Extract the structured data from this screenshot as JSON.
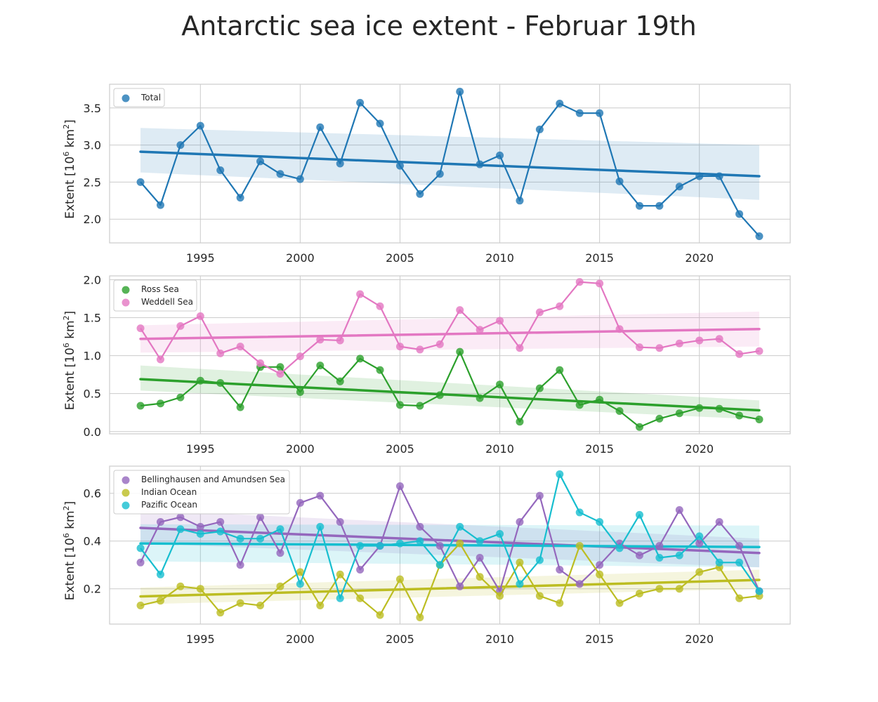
{
  "title": "Antarctic sea ice extent - Februar 19th",
  "colors": {
    "Total": "#1f77b4",
    "Ross Sea": "#2ca02c",
    "Weddell Sea": "#e377c2",
    "Bellinghausen and Amundsen Sea": "#9467bd",
    "Indian Ocean": "#bcbd22",
    "Pazific Ocean": "#17becf",
    "grid": "#cccccc"
  },
  "chart_data": [
    {
      "type": "line",
      "panel": "top",
      "ylabel": "Extent [10^6 km^2]",
      "xlabel": "",
      "xlim": [
        1990.45,
        2024.55
      ],
      "ylim": [
        1.68,
        3.82
      ],
      "xticks": [
        1995,
        2000,
        2005,
        2010,
        2015,
        2020
      ],
      "yticks": [
        "2.0",
        "2.5",
        "3.0",
        "3.5"
      ],
      "ytick_values": [
        2.0,
        2.5,
        3.0,
        3.5
      ],
      "legend": [
        "Total"
      ],
      "legend_position": "upper-left",
      "grid": true,
      "x": [
        1992,
        1993,
        1994,
        1995,
        1996,
        1997,
        1998,
        1999,
        2000,
        2001,
        2002,
        2003,
        2004,
        2005,
        2006,
        2007,
        2008,
        2009,
        2010,
        2011,
        2012,
        2013,
        2014,
        2015,
        2016,
        2017,
        2018,
        2019,
        2020,
        2021,
        2022,
        2023
      ],
      "series": [
        {
          "name": "Total",
          "values": [
            2.5,
            2.19,
            3.0,
            3.26,
            2.66,
            2.29,
            2.78,
            2.61,
            2.54,
            3.24,
            2.75,
            3.57,
            3.29,
            2.72,
            2.34,
            2.61,
            3.72,
            2.74,
            2.86,
            2.25,
            3.21,
            3.56,
            3.43,
            3.43,
            2.51,
            2.18,
            2.18,
            2.44,
            2.58,
            2.58,
            2.07,
            1.77
          ],
          "trend": [
            2.91,
            2.58
          ],
          "ci_start": [
            2.63,
            3.23
          ],
          "ci_end": [
            2.26,
            3.0
          ]
        }
      ]
    },
    {
      "type": "line",
      "panel": "middle",
      "ylabel": "Extent [10^6 km^2]",
      "xlabel": "",
      "xlim": [
        1990.45,
        2024.55
      ],
      "ylim": [
        -0.03,
        2.05
      ],
      "xticks": [
        1995,
        2000,
        2005,
        2010,
        2015,
        2020
      ],
      "yticks": [
        "0.0",
        "0.5",
        "1.0",
        "1.5",
        "2.0"
      ],
      "ytick_values": [
        0.0,
        0.5,
        1.0,
        1.5,
        2.0
      ],
      "legend": [
        "Ross Sea",
        "Weddell Sea"
      ],
      "legend_position": "upper-left",
      "grid": true,
      "x": [
        1992,
        1993,
        1994,
        1995,
        1996,
        1997,
        1998,
        1999,
        2000,
        2001,
        2002,
        2003,
        2004,
        2005,
        2006,
        2007,
        2008,
        2009,
        2010,
        2011,
        2012,
        2013,
        2014,
        2015,
        2016,
        2017,
        2018,
        2019,
        2020,
        2021,
        2022,
        2023
      ],
      "series": [
        {
          "name": "Ross Sea",
          "values": [
            0.34,
            0.37,
            0.45,
            0.67,
            0.64,
            0.32,
            0.85,
            0.85,
            0.52,
            0.87,
            0.66,
            0.96,
            0.81,
            0.35,
            0.34,
            0.48,
            1.05,
            0.44,
            0.62,
            0.13,
            0.57,
            0.81,
            0.35,
            0.42,
            0.27,
            0.06,
            0.17,
            0.24,
            0.31,
            0.3,
            0.21,
            0.16
          ],
          "trend": [
            0.69,
            0.28
          ],
          "ci_start": [
            0.54,
            0.87
          ],
          "ci_end": [
            0.16,
            0.41
          ]
        },
        {
          "name": "Weddell Sea",
          "values": [
            1.36,
            0.95,
            1.39,
            1.52,
            1.03,
            1.12,
            0.9,
            0.76,
            0.99,
            1.21,
            1.2,
            1.81,
            1.65,
            1.12,
            1.08,
            1.15,
            1.6,
            1.34,
            1.46,
            1.1,
            1.57,
            1.65,
            1.97,
            1.95,
            1.35,
            1.11,
            1.1,
            1.16,
            1.2,
            1.22,
            1.02,
            1.06
          ],
          "trend": [
            1.22,
            1.35
          ],
          "ci_start": [
            1.04,
            1.4
          ],
          "ci_end": [
            1.12,
            1.58
          ]
        }
      ]
    },
    {
      "type": "line",
      "panel": "bottom",
      "ylabel": "Extent [10^6 km^2]",
      "xlabel": "",
      "xlim": [
        1990.45,
        2024.55
      ],
      "ylim": [
        0.052,
        0.714
      ],
      "xticks": [
        1995,
        2000,
        2005,
        2010,
        2015,
        2020
      ],
      "yticks": [
        "0.2",
        "0.4",
        "0.6"
      ],
      "ytick_values": [
        0.2,
        0.4,
        0.6
      ],
      "legend": [
        "Bellinghausen and Amundsen Sea",
        "Indian Ocean",
        "Pazific Ocean"
      ],
      "legend_position": "upper-left",
      "grid": true,
      "x": [
        1992,
        1993,
        1994,
        1995,
        1996,
        1997,
        1998,
        1999,
        2000,
        2001,
        2002,
        2003,
        2004,
        2005,
        2006,
        2007,
        2008,
        2009,
        2010,
        2011,
        2012,
        2013,
        2014,
        2015,
        2016,
        2017,
        2018,
        2019,
        2020,
        2021,
        2022,
        2023
      ],
      "series": [
        {
          "name": "Bellinghausen and Amundsen Sea",
          "values": [
            0.31,
            0.48,
            0.5,
            0.46,
            0.48,
            0.3,
            0.5,
            0.35,
            0.56,
            0.59,
            0.48,
            0.28,
            0.38,
            0.63,
            0.46,
            0.38,
            0.21,
            0.33,
            0.19,
            0.48,
            0.59,
            0.28,
            0.22,
            0.3,
            0.39,
            0.34,
            0.38,
            0.53,
            0.39,
            0.48,
            0.38,
            0.19
          ],
          "trend": [
            0.455,
            0.35
          ],
          "ci_start": [
            0.39,
            0.53
          ],
          "ci_end": [
            0.29,
            0.41
          ]
        },
        {
          "name": "Indian Ocean",
          "values": [
            0.13,
            0.15,
            0.21,
            0.2,
            0.1,
            0.14,
            0.13,
            0.21,
            0.27,
            0.13,
            0.26,
            0.16,
            0.09,
            0.24,
            0.08,
            0.3,
            0.39,
            0.25,
            0.17,
            0.31,
            0.17,
            0.14,
            0.38,
            0.26,
            0.14,
            0.18,
            0.2,
            0.2,
            0.27,
            0.29,
            0.16,
            0.17
          ],
          "trend": [
            0.168,
            0.237
          ],
          "ci_start": [
            0.135,
            0.205
          ],
          "ci_end": [
            0.2,
            0.28
          ]
        },
        {
          "name": "Pazific Ocean",
          "values": [
            0.37,
            0.26,
            0.45,
            0.43,
            0.44,
            0.41,
            0.41,
            0.45,
            0.22,
            0.46,
            0.16,
            0.38,
            0.38,
            0.39,
            0.4,
            0.3,
            0.46,
            0.4,
            0.43,
            0.22,
            0.32,
            0.68,
            0.52,
            0.48,
            0.37,
            0.51,
            0.33,
            0.34,
            0.42,
            0.31,
            0.31,
            0.19
          ],
          "trend": [
            0.39,
            0.375
          ],
          "ci_start": [
            0.315,
            0.47
          ],
          "ci_end": [
            0.29,
            0.465
          ]
        }
      ]
    }
  ]
}
